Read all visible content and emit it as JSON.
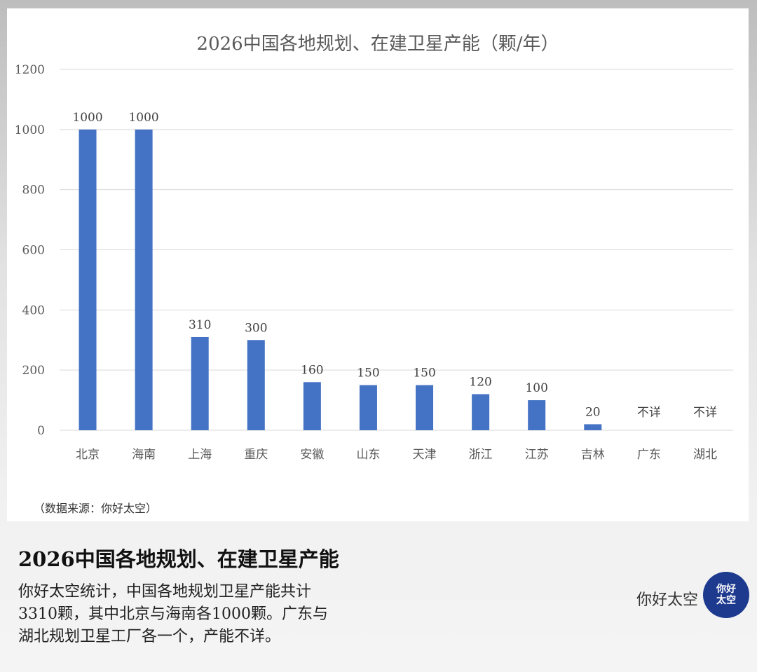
{
  "chart_data": {
    "type": "bar",
    "title": "2026中国各地规划、在建卫星产能（颗/年）",
    "categories": [
      "北京",
      "海南",
      "上海",
      "重庆",
      "安徽",
      "山东",
      "天津",
      "浙江",
      "江苏",
      "吉林",
      "广东",
      "湖北"
    ],
    "values": [
      1000,
      1000,
      310,
      300,
      160,
      150,
      150,
      120,
      100,
      20,
      null,
      null
    ],
    "data_labels": [
      "1000",
      "1000",
      "310",
      "300",
      "160",
      "150",
      "150",
      "120",
      "100",
      "20",
      "不详",
      "不详"
    ],
    "ylim": [
      0,
      1200
    ],
    "yticks": [
      0,
      200,
      400,
      600,
      800,
      1000,
      1200
    ],
    "grid": true,
    "bar_color": "#4472c4"
  },
  "source": "（数据来源：你好太空）",
  "headline": "2026中国各地规划、在建卫星产能",
  "description_lines": [
    "你好太空统计，中国各地规划卫星产能共计",
    "3310颗，其中北京与海南各1000颗。广东与",
    "湖北规划卫星工厂各一个，产能不详。"
  ],
  "brand": "你好太空",
  "logo_text": "你好太空"
}
